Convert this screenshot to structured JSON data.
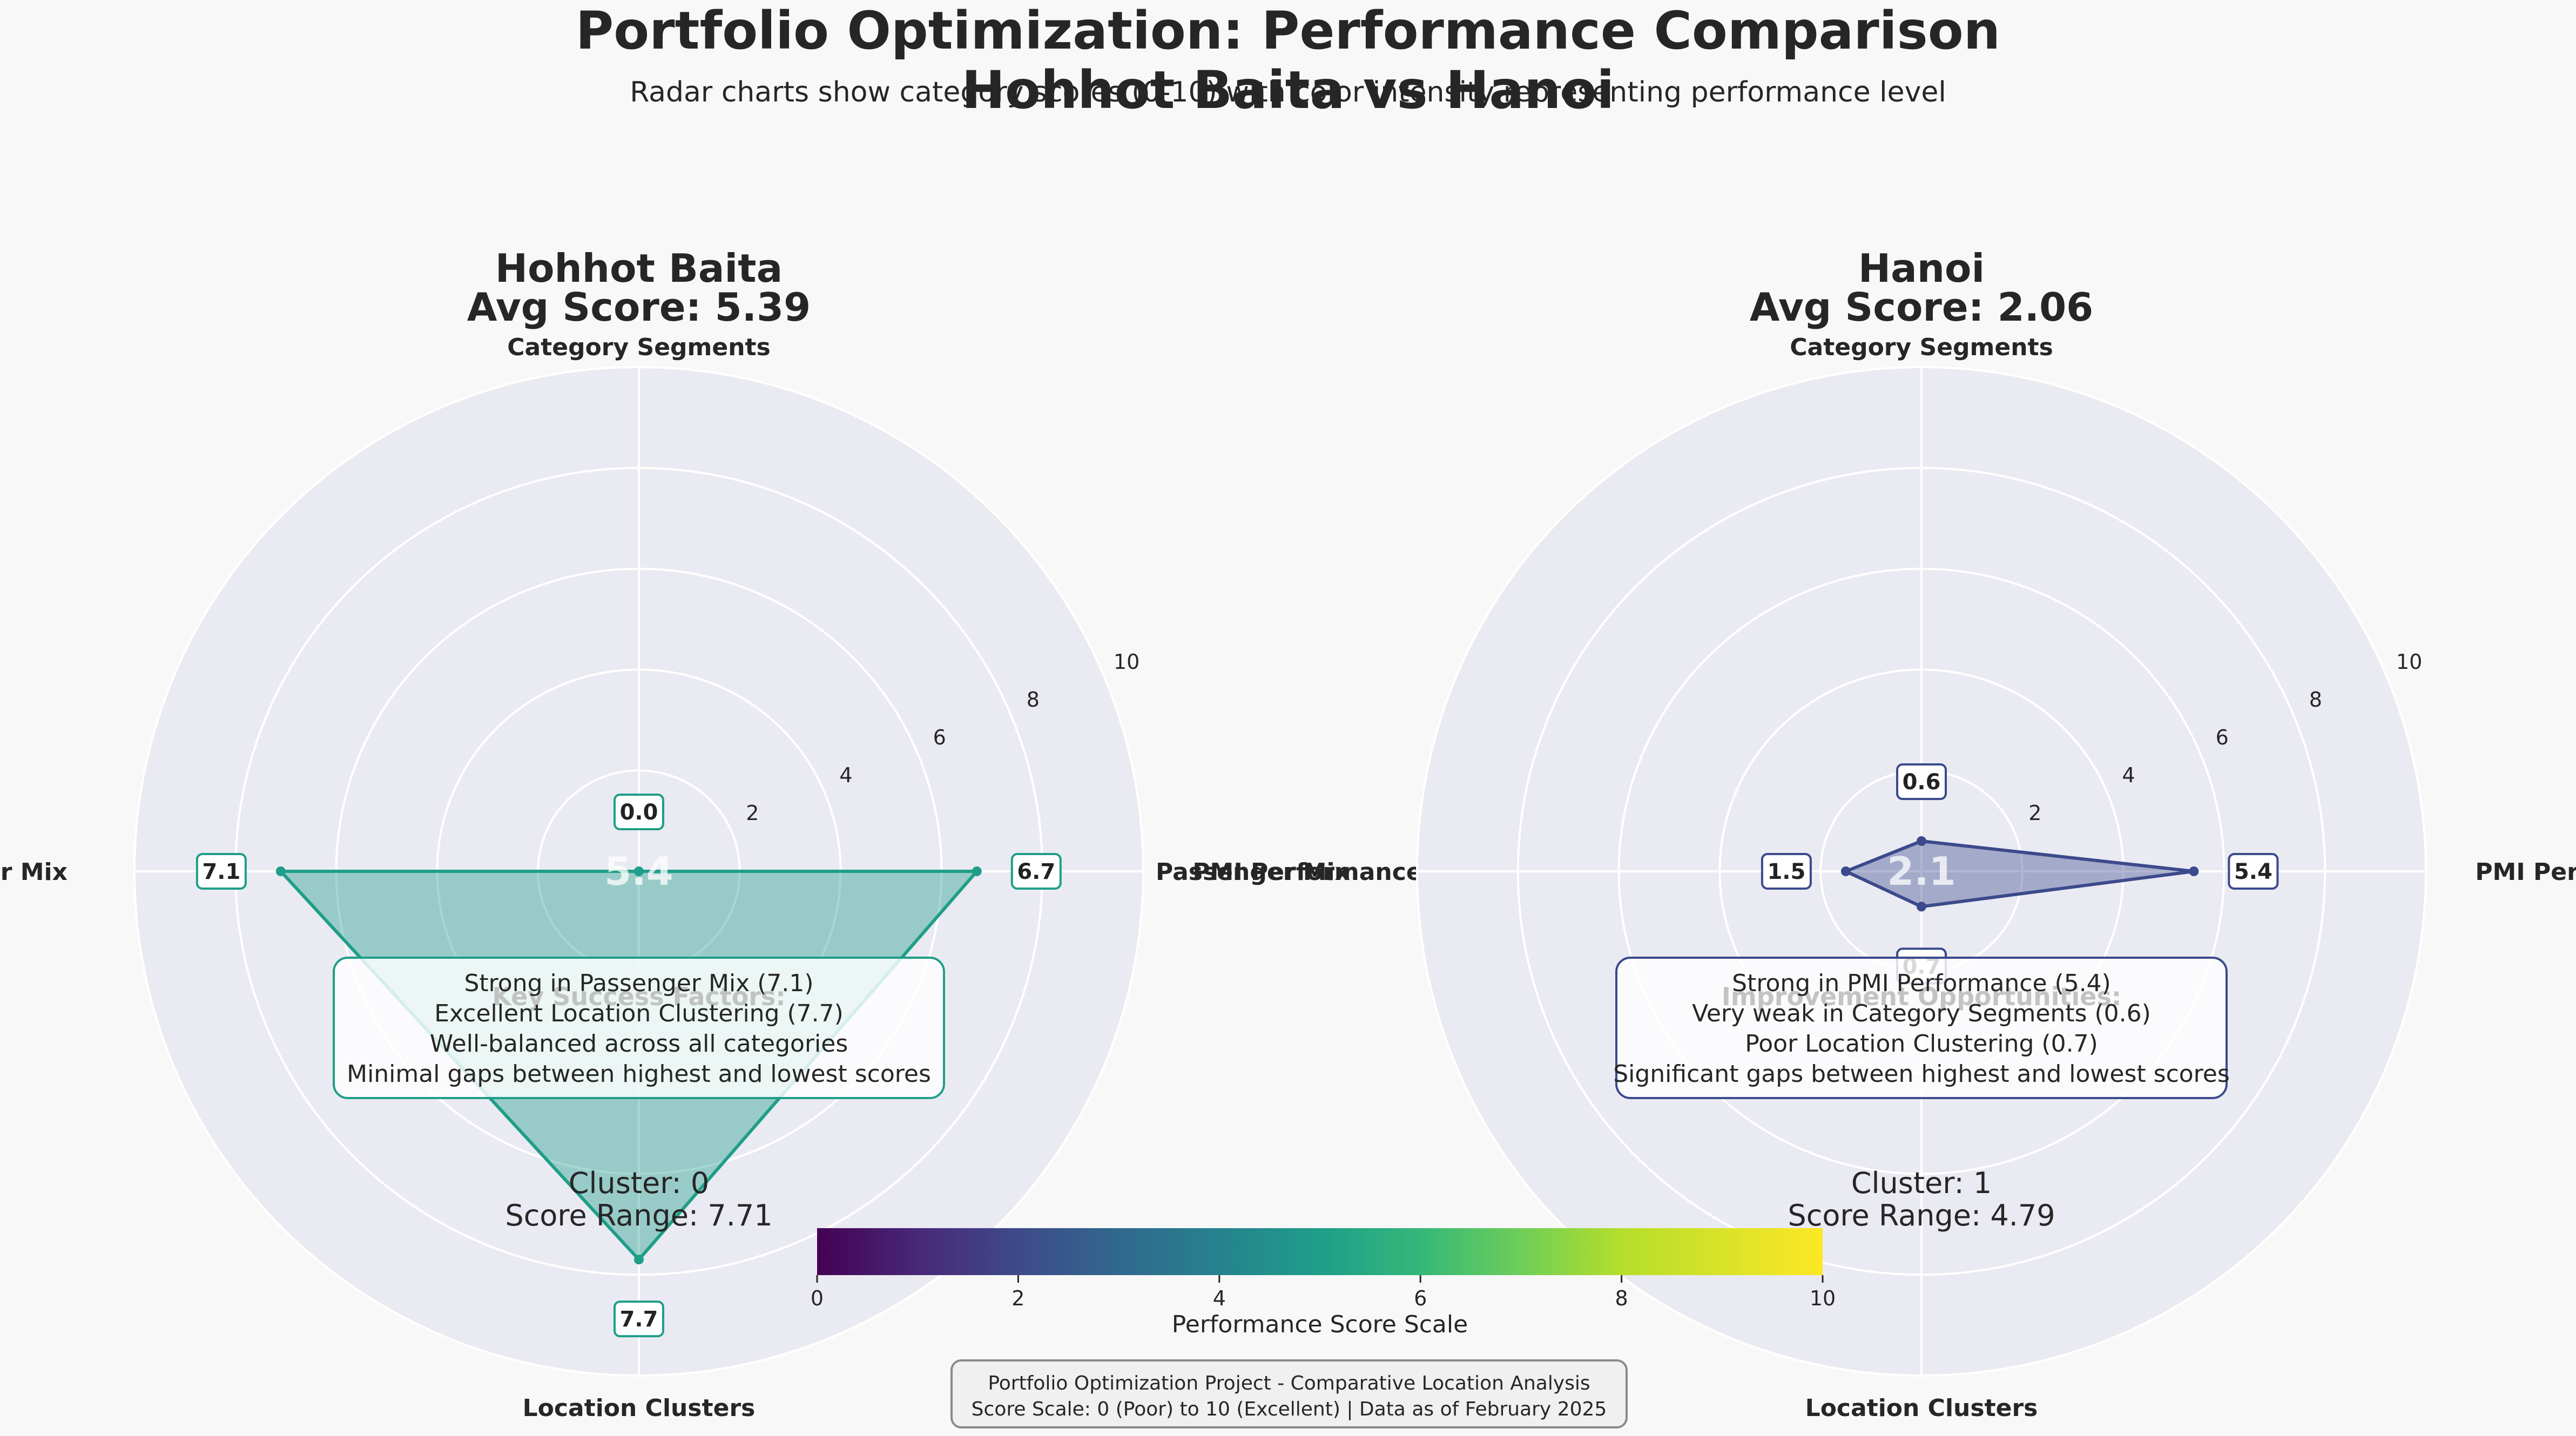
{
  "header": {
    "title_line1": "Portfolio Optimization: Performance Comparison",
    "title_line2": "Hohhot Baita vs Hanoi",
    "subtitle": "Radar charts show category scores (0-10) with color intensity representing performance level"
  },
  "chart_data": [
    {
      "type": "radar",
      "name": "Hohhot Baita",
      "title_line1": "Hohhot Baita",
      "title_line2": "Avg Score: 5.39",
      "axes": [
        "Category Segments",
        "PMI Performance",
        "Location Clusters",
        "Passenger Mix"
      ],
      "values": [
        0.0,
        6.7,
        7.7,
        7.1
      ],
      "value_labels": [
        "0.0",
        "6.7",
        "7.7",
        "7.1"
      ],
      "rlim": [
        0,
        10
      ],
      "rticks": [
        2,
        4,
        6,
        8,
        10
      ],
      "center_label": "5.4",
      "fill_color": "#1f9e89",
      "edge_color": "#1f9e89",
      "box_heading": "Key Success Factors:",
      "box_lines": [
        "Strong in Passenger Mix (7.1)",
        "Excellent Location Clustering (7.7)",
        "Well-balanced across all categories",
        "Minimal gaps between highest and lowest scores"
      ],
      "cluster_label": "Cluster: 0",
      "range_label": "Score Range: 7.71"
    },
    {
      "type": "radar",
      "name": "Hanoi",
      "title_line1": "Hanoi",
      "title_line2": "Avg Score: 2.06",
      "axes": [
        "Category Segments",
        "PMI Performance",
        "Location Clusters",
        "Passenger Mix"
      ],
      "values": [
        0.6,
        5.4,
        0.7,
        1.5
      ],
      "value_labels": [
        "0.6",
        "5.4",
        "0.7",
        "1.5"
      ],
      "rlim": [
        0,
        10
      ],
      "rticks": [
        2,
        4,
        6,
        8,
        10
      ],
      "center_label": "2.1",
      "fill_color": "#3b4a8c",
      "edge_color": "#3b4a8c",
      "box_heading": "Improvement Opportunities:",
      "box_lines": [
        "Strong in PMI Performance (5.4)",
        "Very weak in Category Segments (0.6)",
        "Poor Location Clustering (0.7)",
        "Significant gaps between highest and lowest scores"
      ],
      "cluster_label": "Cluster: 1",
      "range_label": "Score Range: 4.79"
    }
  ],
  "colorbar": {
    "label": "Performance Score Scale",
    "ticks": [
      0,
      2,
      4,
      6,
      8,
      10
    ],
    "tick_labels": [
      "0",
      "2",
      "4",
      "6",
      "8",
      "10"
    ],
    "colormap": "viridis"
  },
  "footer": {
    "line1": "Portfolio Optimization Project - Comparative Location Analysis",
    "line2": "Score Scale: 0 (Poor) to 10 (Excellent) | Data as of February 2025"
  }
}
